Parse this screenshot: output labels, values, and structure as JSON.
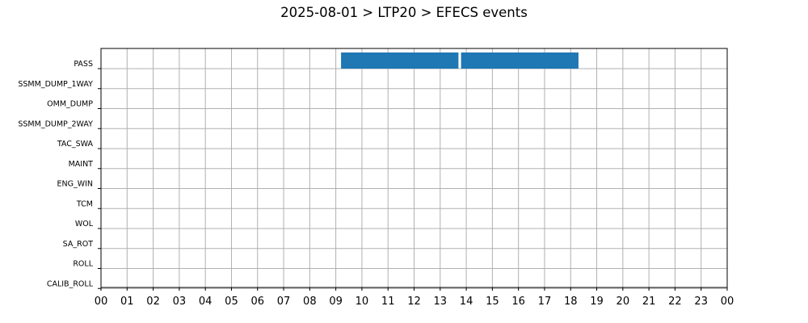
{
  "chart_data": {
    "type": "timeline",
    "title": "2025-08-01 > LTP20 > EFECS events",
    "xlabel": "",
    "ylabel": "",
    "x_range_hours": [
      0,
      24
    ],
    "x_tick_labels": [
      "00",
      "01",
      "02",
      "03",
      "04",
      "05",
      "06",
      "07",
      "08",
      "09",
      "10",
      "11",
      "12",
      "13",
      "14",
      "15",
      "16",
      "17",
      "18",
      "19",
      "20",
      "21",
      "22",
      "23",
      "00"
    ],
    "categories": [
      "PASS",
      "SSMM_DUMP_1WAY",
      "OMM_DUMP",
      "SSMM_DUMP_2WAY",
      "TAC_SWA",
      "MAINT",
      "ENG_WIN",
      "TCM",
      "WOL",
      "SA_ROT",
      "ROLL",
      "CALIB_ROLL"
    ],
    "events": [
      {
        "category": "PASS",
        "start_hour": 9.2,
        "end_hour": 13.7
      },
      {
        "category": "PASS",
        "start_hour": 13.8,
        "end_hour": 18.3
      }
    ],
    "grid": true,
    "bar_color": "#1f77b4"
  }
}
